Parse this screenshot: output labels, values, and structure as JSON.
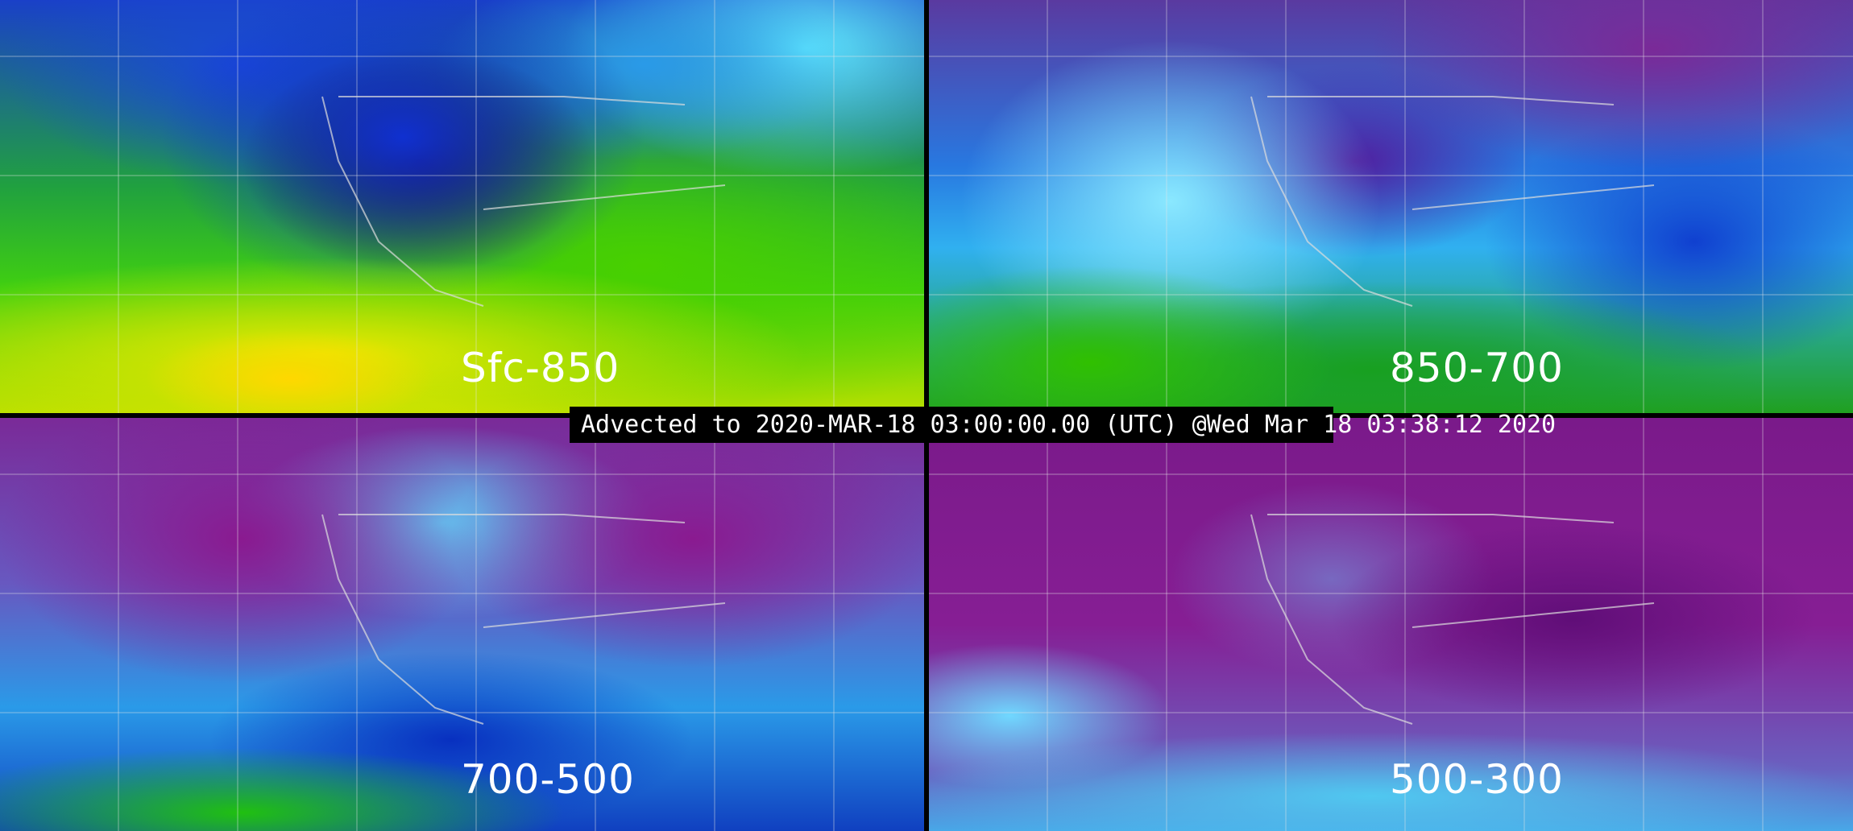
{
  "panels": [
    {
      "label": "Sfc-850"
    },
    {
      "label": "850-700"
    },
    {
      "label": "700-500"
    },
    {
      "label": "500-300"
    }
  ],
  "caption": "Advected to 2020-MAR-18 03:00:00.00 (UTC) @Wed Mar 18 03:38:12 2020",
  "colors": {
    "background": "#000000",
    "dry": "#861e94",
    "moist_low": "#30b0f0",
    "moist_mid": "#40d010",
    "moist_high": "#e8e800"
  }
}
